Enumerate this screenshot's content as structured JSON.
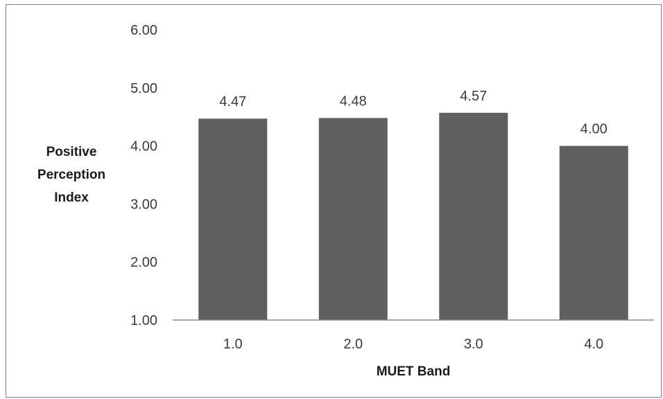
{
  "chart_data": {
    "type": "bar",
    "categories": [
      "1.0",
      "2.0",
      "3.0",
      "4.0"
    ],
    "values": [
      4.47,
      4.48,
      4.57,
      4.0
    ],
    "data_labels": [
      "4.47",
      "4.48",
      "4.57",
      "4.00"
    ],
    "title": "",
    "xlabel": "MUET Band",
    "ylabel_lines": [
      "Positive",
      "Perception",
      "Index"
    ],
    "ylim": [
      1.0,
      6.0
    ],
    "yticks": [
      1.0,
      2.0,
      3.0,
      4.0,
      5.0,
      6.0
    ],
    "ytick_labels": [
      "1.00",
      "2.00",
      "3.00",
      "4.00",
      "5.00",
      "6.00"
    ],
    "grid": false,
    "legend": "none",
    "colors": {
      "bar": "#5f5f5f",
      "axis": "#8a8a8a",
      "text": "#3a3a3a",
      "frame": "#7f7f7f"
    }
  }
}
